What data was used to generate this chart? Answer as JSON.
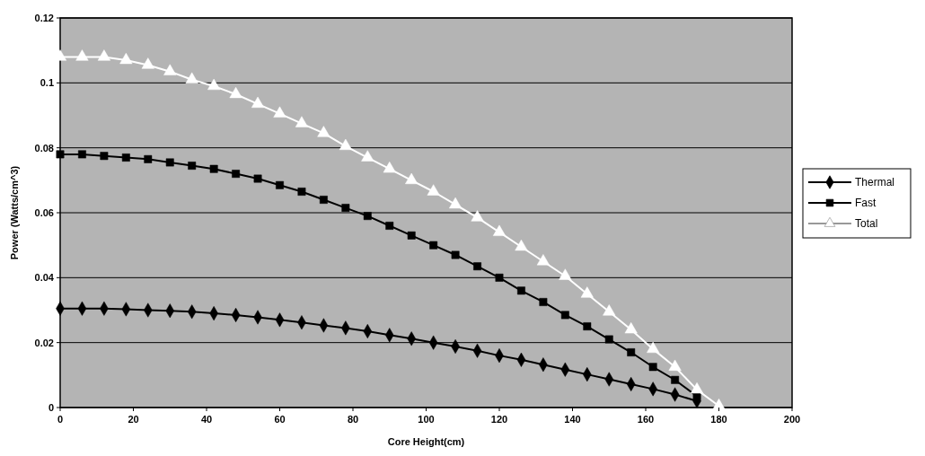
{
  "chart_data": {
    "type": "line",
    "xlabel": "Core Height(cm)",
    "ylabel": "Power (Watts/cm^3)",
    "x": [
      0,
      6,
      12,
      18,
      24,
      30,
      36,
      42,
      48,
      54,
      60,
      66,
      72,
      78,
      84,
      90,
      96,
      102,
      108,
      114,
      120,
      126,
      132,
      138,
      144,
      150,
      156,
      162,
      168,
      174,
      180
    ],
    "series": [
      {
        "name": "Thermal",
        "color": "#000000",
        "marker": "diamond",
        "values": [
          0.0305,
          0.0305,
          0.0305,
          0.0303,
          0.03,
          0.0298,
          0.0295,
          0.029,
          0.0285,
          0.0278,
          0.027,
          0.0262,
          0.0253,
          0.0245,
          0.0235,
          0.0223,
          0.0212,
          0.02,
          0.0188,
          0.0175,
          0.016,
          0.0147,
          0.0132,
          0.0117,
          0.0102,
          0.0087,
          0.0072,
          0.0057,
          0.004,
          0.002,
          null
        ]
      },
      {
        "name": "Fast",
        "color": "#000000",
        "marker": "square",
        "values": [
          0.078,
          0.078,
          0.0775,
          0.077,
          0.0765,
          0.0755,
          0.0745,
          0.0735,
          0.072,
          0.0705,
          0.0685,
          0.0665,
          0.064,
          0.0615,
          0.059,
          0.056,
          0.053,
          0.05,
          0.047,
          0.0435,
          0.04,
          0.036,
          0.0325,
          0.0285,
          0.025,
          0.021,
          0.017,
          0.0125,
          0.0085,
          0.0035,
          null
        ]
      },
      {
        "name": "Total",
        "color": "#ffffff",
        "marker": "triangle",
        "values": [
          0.108,
          0.108,
          0.108,
          0.107,
          0.1055,
          0.1035,
          0.101,
          0.099,
          0.0965,
          0.0935,
          0.0905,
          0.0875,
          0.0845,
          0.0805,
          0.077,
          0.0735,
          0.07,
          0.0665,
          0.0625,
          0.0585,
          0.054,
          0.0495,
          0.045,
          0.0405,
          0.035,
          0.0295,
          0.024,
          0.018,
          0.0125,
          0.0055,
          0.0005
        ]
      }
    ],
    "xlim": [
      0,
      200
    ],
    "xticks": [
      0,
      20,
      40,
      60,
      80,
      100,
      120,
      140,
      160,
      180,
      200
    ],
    "ylim": [
      0,
      0.12
    ],
    "yticks": [
      0,
      0.02,
      0.04,
      0.06,
      0.08,
      0.1,
      0.12
    ],
    "grid": "y",
    "legend": "right"
  }
}
